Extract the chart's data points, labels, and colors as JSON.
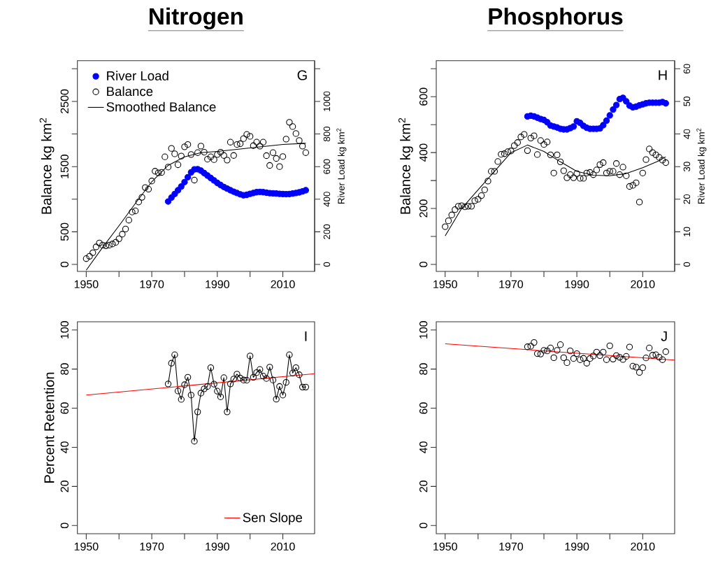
{
  "chart_data": [
    {
      "type": "scatter",
      "title": "Nitrogen",
      "ylabel": "Balance kg km$^{2}$",
      "y2label": "River Load kg km$^{2}$",
      "marker": "circle",
      "legend": "top left",
      "annotations": [
        "G"
      ],
      "xlim": [
        1947.3,
        2019.7
      ],
      "xticks": [
        1950,
        {
          "value": 1960,
          "label": null
        },
        1970,
        {
          "value": 1980,
          "label": null
        },
        1990,
        {
          "value": 2000,
          "label": null
        },
        2010
      ],
      "ylim": [
        -107,
        3125
      ],
      "yticks": [
        0,
        500,
        {
          "value": 1000,
          "label": null
        },
        1500,
        {
          "value": 2000,
          "label": null
        },
        2500,
        {
          "value": 3000,
          "label": null
        }
      ],
      "y2lim": [
        -42.8,
        1250
      ],
      "y2ticks": [
        0,
        200,
        400,
        600,
        800,
        1000,
        {
          "value": 1200,
          "label": null
        }
      ],
      "series": [
        {
          "name": "River Load",
          "color": "#0000ff",
          "axis": "y2",
          "x": [
            1975,
            1976,
            1977,
            1978,
            1979,
            1980,
            1981,
            1982,
            1983,
            1984,
            1985,
            1986,
            1987,
            1988,
            1989,
            1990,
            1991,
            1992,
            1993,
            1994,
            1995,
            1996,
            1997,
            1998,
            1999,
            2000,
            2001,
            2002,
            2003,
            2004,
            2005,
            2006,
            2007,
            2008,
            2009,
            2010,
            2011,
            2012,
            2013,
            2014,
            2015,
            2016,
            2017
          ],
          "values": [
            386,
            410,
            432,
            455,
            478,
            505,
            535,
            565,
            583,
            584,
            575,
            560,
            545,
            530,
            515,
            500,
            487,
            475,
            465,
            455,
            446,
            438,
            430,
            424,
            427,
            433,
            438,
            443,
            445,
            443,
            440,
            437,
            436,
            435,
            433,
            432,
            431,
            432,
            435,
            438,
            442,
            448,
            455
          ]
        },
        {
          "name": "Balance",
          "color": "#000000",
          "x": [
            1950,
            1951,
            1952,
            1953,
            1954,
            1955,
            1956,
            1957,
            1958,
            1959,
            1960,
            1961,
            1962,
            1963,
            1964,
            1965,
            1966,
            1967,
            1968,
            1969,
            1970,
            1971,
            1972,
            1973,
            1974,
            1975,
            1976,
            1977,
            1978,
            1979,
            1980,
            1981,
            1982,
            1983,
            1984,
            1985,
            1986,
            1987,
            1988,
            1989,
            1990,
            1991,
            1992,
            1993,
            1994,
            1995,
            1996,
            1997,
            1998,
            1999,
            2000,
            2001,
            2002,
            2003,
            2004,
            2005,
            2006,
            2007,
            2008,
            2009,
            2010,
            2011,
            2012,
            2013,
            2014,
            2015,
            2016,
            2017
          ],
          "values": [
            89,
            125,
            179,
            268,
            329,
            296,
            286,
            296,
            314,
            339,
            393,
            464,
            543,
            679,
            804,
            821,
            957,
            1029,
            1179,
            1154,
            1279,
            1429,
            1404,
            1411,
            1650,
            1493,
            1779,
            1696,
            1529,
            1661,
            1804,
            1839,
            1686,
            1293,
            1714,
            1814,
            1721,
            1614,
            1650,
            1607,
            1686,
            1721,
            1671,
            1600,
            1875,
            1671,
            1839,
            1850,
            1929,
            1993,
            1964,
            1821,
            1875,
            1814,
            1875,
            1668,
            1518,
            1714,
            1625,
            1500,
            1654,
            1921,
            2179,
            2114,
            2007,
            1900,
            1814,
            1714
          ]
        },
        {
          "name": "Smoothed Balance",
          "type": "line",
          "marker": "none",
          "color": "#000000",
          "x": [
            1950,
            1955,
            1960,
            1965,
            1970,
            1975,
            1980,
            1985,
            1990,
            1995,
            2000,
            2005,
            2010,
            2017
          ],
          "values": [
            -89,
            261,
            593,
            936,
            1268,
            1518,
            1650,
            1714,
            1732,
            1760,
            1786,
            1812,
            1839,
            1857
          ]
        }
      ]
    },
    {
      "type": "scatter",
      "title": "Phosphorus",
      "ylabel": "Balance kg km$^{2}$",
      "y2label": "River Load kg km$^{2}$",
      "marker": "circle",
      "annotations": [
        "H"
      ],
      "xlim": [
        1947.3,
        2019.7
      ],
      "xticks": [
        1950,
        {
          "value": 1960,
          "label": null
        },
        1970,
        {
          "value": 1980,
          "label": null
        },
        1990,
        {
          "value": 2000,
          "label": null
        },
        2010
      ],
      "ylim": [
        -25,
        729
      ],
      "yticks": [
        0,
        {
          "value": 100,
          "label": null
        },
        200,
        {
          "value": 300,
          "label": null
        },
        400,
        {
          "value": 500,
          "label": null
        },
        600,
        {
          "value": 700,
          "label": null
        }
      ],
      "y2lim": [
        -2.14,
        62.5
      ],
      "y2ticks": [
        0,
        10,
        20,
        30,
        40,
        50,
        60
      ],
      "series": [
        {
          "color": "#0000ff",
          "axis": "y2",
          "x": [
            1975,
            1976,
            1977,
            1978,
            1979,
            1980,
            1981,
            1982,
            1983,
            1984,
            1985,
            1986,
            1987,
            1988,
            1989,
            1990,
            1991,
            1992,
            1993,
            1994,
            1995,
            1996,
            1997,
            1998,
            1999,
            2000,
            2001,
            2002,
            2003,
            2004,
            2005,
            2006,
            2007,
            2008,
            2009,
            2010,
            2011,
            2012,
            2013,
            2014,
            2015,
            2016,
            2017
          ],
          "values": [
            45.4,
            45.6,
            45.4,
            45.0,
            44.6,
            44.3,
            43.6,
            42.6,
            42.3,
            42.0,
            41.6,
            41.4,
            41.4,
            41.8,
            42.3,
            43.9,
            43.4,
            42.5,
            41.9,
            41.6,
            41.6,
            41.6,
            41.7,
            42.7,
            44.1,
            45.7,
            47.5,
            48.9,
            50.7,
            51.1,
            50.0,
            48.7,
            48.2,
            48.4,
            48.8,
            49.1,
            49.4,
            49.6,
            49.6,
            49.6,
            49.6,
            49.8,
            49.4
          ]
        },
        {
          "color": "#000000",
          "x": [
            1950,
            1951,
            1952,
            1953,
            1954,
            1955,
            1956,
            1957,
            1958,
            1959,
            1960,
            1961,
            1962,
            1963,
            1964,
            1965,
            1966,
            1967,
            1968,
            1969,
            1970,
            1971,
            1972,
            1973,
            1974,
            1975,
            1976,
            1977,
            1978,
            1979,
            1980,
            1981,
            1982,
            1983,
            1984,
            1985,
            1986,
            1987,
            1988,
            1989,
            1990,
            1991,
            1992,
            1993,
            1994,
            1995,
            1996,
            1997,
            1998,
            1999,
            2000,
            2001,
            2002,
            2003,
            2004,
            2005,
            2006,
            2007,
            2008,
            2009,
            2010,
            2011,
            2012,
            2013,
            2014,
            2015,
            2016,
            2017
          ],
          "values": [
            135,
            156,
            177,
            196,
            208,
            210,
            206,
            208,
            208,
            228,
            233,
            246,
            267,
            298,
            333,
            333,
            368,
            394,
            396,
            403,
            406,
            425,
            436,
            456,
            465,
            407,
            452,
            460,
            393,
            443,
            429,
            438,
            392,
            327,
            392,
            367,
            335,
            310,
            321,
            310,
            325,
            308,
            308,
            327,
            329,
            321,
            338,
            357,
            364,
            327,
            333,
            333,
            361,
            321,
            348,
            317,
            279,
            283,
            292,
            223,
            327,
            375,
            413,
            400,
            392,
            383,
            373,
            364
          ]
        },
        {
          "type": "line",
          "marker": "none",
          "color": "#000000",
          "x": [
            1950,
            1955,
            1960,
            1965,
            1970,
            1975,
            1980,
            1985,
            1990,
            1995,
            2000,
            2005,
            2010,
            2015,
            2017
          ],
          "values": [
            102,
            200,
            267,
            333,
            400,
            427,
            404,
            367,
            333,
            319,
            317,
            325,
            346,
            371,
            385
          ]
        }
      ]
    },
    {
      "type": "line",
      "ylabel": "Percent Retention",
      "marker": "circle",
      "legend": "bottom right",
      "annotations": [
        "I"
      ],
      "xlim": [
        1947.3,
        2019.7
      ],
      "xticks": [
        1950,
        {
          "value": 1960,
          "label": null
        },
        1970,
        {
          "value": 1980,
          "label": null
        },
        1990,
        {
          "value": 2000,
          "label": null
        },
        2010
      ],
      "ylim": [
        -4.2,
        104.2
      ],
      "yticks": [
        0,
        20,
        40,
        60,
        80,
        100
      ],
      "series": [
        {
          "color": "#000000",
          "x": [
            1975,
            1976,
            1977,
            1978,
            1979,
            1980,
            1981,
            1982,
            1983,
            1984,
            1985,
            1986,
            1987,
            1988,
            1989,
            1990,
            1991,
            1992,
            1993,
            1994,
            1995,
            1996,
            1997,
            1998,
            1999,
            2000,
            2001,
            2002,
            2003,
            2004,
            2005,
            2006,
            2007,
            2008,
            2009,
            2010,
            2011,
            2012,
            2013,
            2014,
            2015,
            2016,
            2017
          ],
          "values": [
            72.4,
            83.0,
            87.3,
            68.8,
            64.5,
            72.0,
            75.8,
            66.7,
            43.1,
            58.1,
            67.7,
            69.9,
            71.1,
            80.7,
            72.3,
            68.7,
            65.8,
            75.6,
            58.1,
            72.4,
            74.9,
            77.4,
            75.4,
            74.4,
            74.3,
            86.7,
            75.8,
            78.2,
            79.8,
            76.4,
            75.2,
            81.0,
            74.4,
            64.6,
            71.1,
            66.7,
            73.2,
            87.3,
            78.0,
            80.7,
            77.1,
            70.8,
            70.8
          ]
        },
        {
          "name": "Sen Slope",
          "marker": "none",
          "color": "#ff0000",
          "x": [
            1950,
            2019.7
          ],
          "values": [
            66.7,
            77.6
          ]
        }
      ]
    },
    {
      "type": "scatter",
      "marker": "circle",
      "annotations": [
        "J"
      ],
      "xlim": [
        1947.3,
        2019.7
      ],
      "xticks": [
        1950,
        {
          "value": 1960,
          "label": null
        },
        1970,
        {
          "value": 1980,
          "label": null
        },
        1990,
        {
          "value": 2000,
          "label": null
        },
        2010
      ],
      "ylim": [
        -4.2,
        104.2
      ],
      "yticks": [
        0,
        20,
        40,
        60,
        80,
        100
      ],
      "series": [
        {
          "color": "#000000",
          "x": [
            1975,
            1976,
            1977,
            1978,
            1979,
            1980,
            1981,
            1982,
            1983,
            1984,
            1985,
            1986,
            1987,
            1988,
            1989,
            1990,
            1991,
            1992,
            1993,
            1994,
            1995,
            1996,
            1997,
            1998,
            1999,
            2000,
            2001,
            2002,
            2003,
            2004,
            2005,
            2006,
            2007,
            2008,
            2009,
            2010,
            2011,
            2012,
            2013,
            2014,
            2015,
            2016,
            2017
          ],
          "values": [
            91.4,
            91.7,
            93.6,
            87.9,
            87.7,
            89.6,
            89.3,
            90.8,
            85.8,
            89.6,
            92.5,
            85.8,
            83.3,
            89.3,
            85.4,
            87.9,
            84.8,
            85.5,
            83.0,
            85.4,
            86.7,
            88.7,
            86.9,
            88.7,
            84.8,
            91.9,
            85.1,
            86.9,
            86.0,
            84.9,
            86.5,
            91.3,
            81.5,
            81.0,
            78.3,
            80.7,
            85.7,
            90.8,
            87.1,
            87.3,
            86.1,
            84.8,
            88.9
          ]
        },
        {
          "type": "line",
          "marker": "none",
          "color": "#ff0000",
          "x": [
            1950,
            2019.7
          ],
          "values": [
            92.9,
            84.6
          ]
        }
      ]
    }
  ]
}
